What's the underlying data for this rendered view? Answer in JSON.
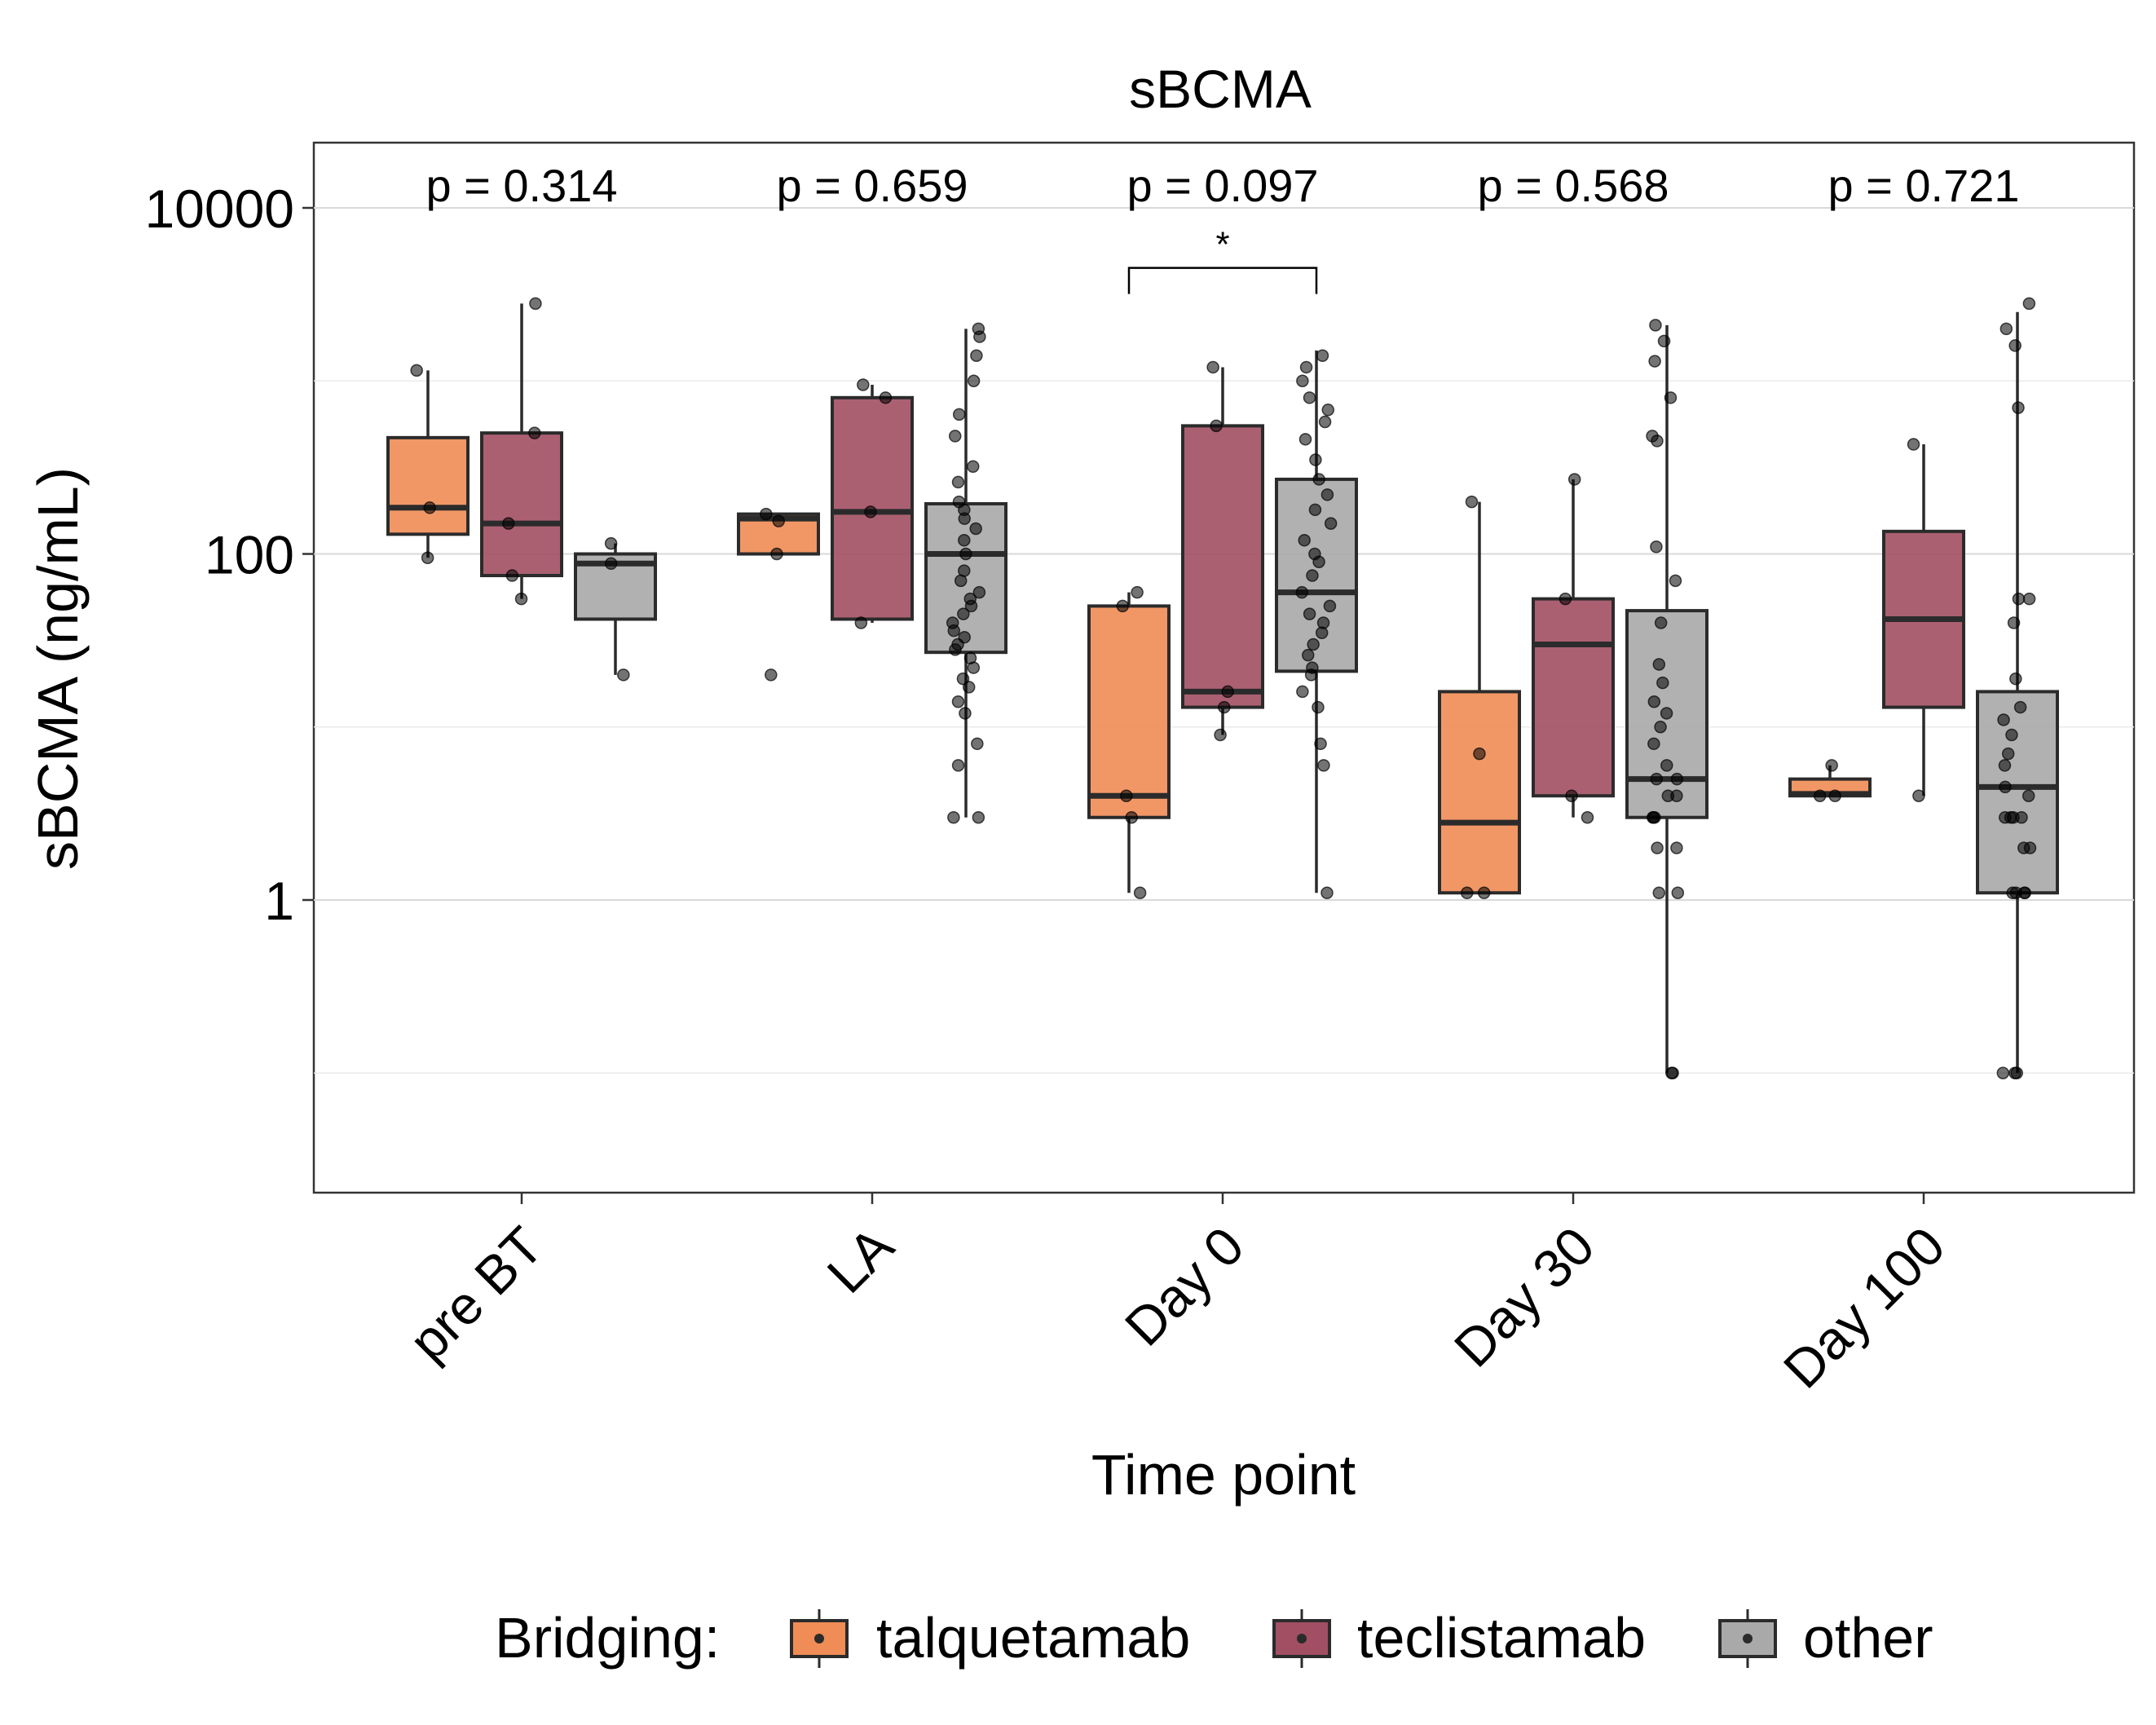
{
  "chart_data": {
    "type": "box",
    "title": "sBCMA",
    "xlabel": "Time point",
    "ylabel": "sBCMA (ng/mL)",
    "y_scale": "log10",
    "ylim": [
      0.02,
      25000
    ],
    "y_ticks": [
      1,
      100,
      10000
    ],
    "y_tick_labels": [
      "1",
      "100",
      "10000"
    ],
    "grid": true,
    "legend": {
      "position": "bottom",
      "title": "Bridging:"
    },
    "categories": [
      "pre BT",
      "LA",
      "Day 0",
      "Day 30",
      "Day 100"
    ],
    "p_values": [
      "p = 0.314",
      "p = 0.659",
      "p = 0.097",
      "p = 0.568",
      "p = 0.721"
    ],
    "annotations": [
      {
        "category": "Day 0",
        "from_series": "talquetamab",
        "to_series": "other",
        "label": "*",
        "y": 4500
      }
    ],
    "series": [
      {
        "name": "talquetamab",
        "color": "#F08C55",
        "boxes": [
          {
            "category": "pre BT",
            "min": 95,
            "q1": 130,
            "median": 185,
            "q3": 470,
            "max": 1150,
            "points": [
              95,
              185,
              1150
            ]
          },
          {
            "category": "LA",
            "min": 100,
            "q1": 100,
            "median": 160,
            "q3": 170,
            "max": 170,
            "points": [
              20,
              100,
              155,
              170
            ]
          },
          {
            "category": "Day 0",
            "min": 1.1,
            "q1": 3,
            "median": 4,
            "q3": 50,
            "max": 60,
            "points": [
              1.1,
              3,
              4,
              50,
              60
            ]
          },
          {
            "category": "Day 30",
            "min": 1.1,
            "q1": 1.1,
            "median": 2.8,
            "q3": 16,
            "max": 200,
            "points": [
              1.1,
              1.1,
              7,
              200
            ]
          },
          {
            "category": "Day 100",
            "min": 4,
            "q1": 4,
            "median": 4.1,
            "q3": 5,
            "max": 6,
            "points": [
              4,
              4,
              6
            ]
          }
        ]
      },
      {
        "name": "teclistamab",
        "color": "#A24F63",
        "boxes": [
          {
            "category": "pre BT",
            "min": 55,
            "q1": 75,
            "median": 150,
            "q3": 500,
            "max": 2800,
            "points": [
              55,
              75,
              150,
              500,
              2800
            ]
          },
          {
            "category": "LA",
            "min": 40,
            "q1": 42,
            "median": 175,
            "q3": 800,
            "max": 950,
            "points": [
              40,
              175,
              800,
              950
            ]
          },
          {
            "category": "Day 0",
            "min": 9,
            "q1": 13,
            "median": 16,
            "q3": 550,
            "max": 1200,
            "points": [
              9,
              13,
              16,
              550,
              1200
            ]
          },
          {
            "category": "Day 30",
            "min": 3,
            "q1": 4,
            "median": 30,
            "q3": 55,
            "max": 270,
            "points": [
              3,
              4,
              55,
              270
            ]
          },
          {
            "category": "Day 100",
            "min": 4,
            "q1": 13,
            "median": 42,
            "q3": 135,
            "max": 430,
            "points": [
              4,
              430
            ]
          }
        ]
      },
      {
        "name": "other",
        "color": "#A9A9A9",
        "boxes": [
          {
            "category": "pre BT",
            "min": 20,
            "q1": 42,
            "median": 88,
            "q3": 100,
            "max": 115,
            "points": [
              20,
              88,
              115
            ]
          },
          {
            "category": "LA",
            "min": 3,
            "q1": 27,
            "median": 100,
            "q3": 195,
            "max": 2000,
            "points": [
              3,
              3,
              6,
              8,
              12,
              14,
              17,
              19,
              22,
              25,
              28,
              30,
              33,
              36,
              40,
              45,
              50,
              55,
              60,
              70,
              80,
              100,
              120,
              140,
              160,
              180,
              200,
              260,
              320,
              480,
              640,
              1000,
              1400,
              1800,
              2000
            ]
          },
          {
            "category": "Day 0",
            "min": 1.1,
            "q1": 21,
            "median": 60,
            "q3": 270,
            "max": 1500,
            "points": [
              1.1,
              6,
              8,
              13,
              16,
              20,
              22,
              26,
              30,
              35,
              40,
              45,
              50,
              60,
              75,
              90,
              100,
              120,
              150,
              180,
              220,
              270,
              350,
              460,
              580,
              680,
              800,
              1000,
              1200,
              1400
            ]
          },
          {
            "category": "Day 30",
            "min": 0.1,
            "q1": 3,
            "median": 5,
            "q3": 47,
            "max": 2100,
            "points": [
              0.1,
              0.1,
              1.1,
              1.1,
              2,
              2,
              3,
              3,
              3,
              4,
              4,
              5,
              5,
              6,
              8,
              10,
              12,
              14,
              18,
              23,
              40,
              70,
              110,
              450,
              480,
              800,
              1300,
              1700,
              2100
            ]
          },
          {
            "category": "Day 100",
            "min": 0.1,
            "q1": 1.1,
            "median": 4.5,
            "q3": 16,
            "max": 2500,
            "points": [
              0.1,
              0.1,
              0.1,
              1.1,
              1.1,
              1.1,
              1.1,
              2,
              2,
              3,
              3,
              3,
              3,
              4,
              4.5,
              6,
              7,
              9,
              11,
              13,
              19,
              40,
              55,
              55,
              700,
              1600,
              2000,
              2800
            ]
          }
        ]
      }
    ]
  }
}
